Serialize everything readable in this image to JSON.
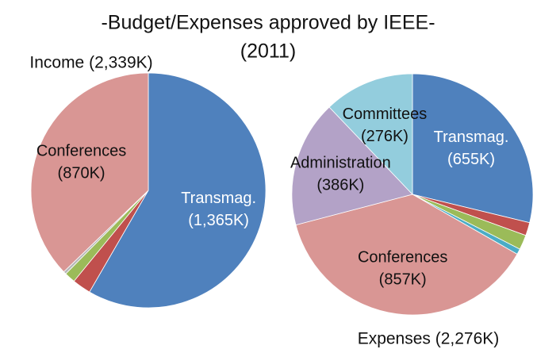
{
  "title": [
    "-Budget/Expenses approved by IEEE-",
    "(2011)"
  ],
  "chart_data": [
    {
      "type": "pie",
      "title": "Income (2,339K)",
      "categories": [
        "Transmag.",
        null,
        null,
        null,
        "Conferences"
      ],
      "values": [
        1365,
        60,
        35,
        9,
        870
      ],
      "value_labels": [
        "(1,365K)",
        null,
        null,
        null,
        "(870K)"
      ],
      "colors": [
        "#4f81bd",
        "#c0504d",
        "#9bbb59",
        "#b7b7b7",
        "#d99694"
      ]
    },
    {
      "type": "pie",
      "title": "Expenses (2,276K)",
      "categories": [
        "Transmag.",
        null,
        null,
        null,
        "Conferences",
        "Administration",
        "Committees"
      ],
      "values": [
        655,
        40,
        45,
        17,
        857,
        386,
        276
      ],
      "value_labels": [
        "(655K)",
        null,
        null,
        null,
        "(857K)",
        "(386K)",
        "(276K)"
      ],
      "colors": [
        "#4f81bd",
        "#c0504d",
        "#9bbb59",
        "#4bacc6",
        "#d99694",
        "#b3a2c7",
        "#93cddd"
      ]
    }
  ]
}
